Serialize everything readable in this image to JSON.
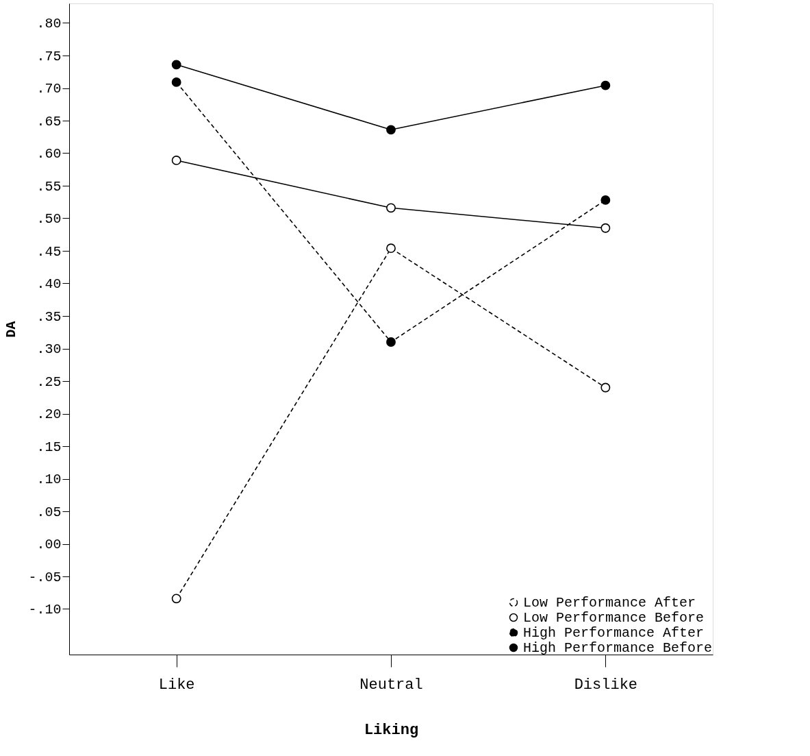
{
  "chart_data": {
    "type": "line",
    "xlabel": "Liking",
    "ylabel": "DA",
    "categories": [
      "Like",
      "Neutral",
      "Dislike"
    ],
    "series": [
      {
        "name": "Low Performance After",
        "color": "#000000",
        "marker": "open circle",
        "line_style": "dashed",
        "values": [
          -0.084,
          0.454,
          0.24
        ]
      },
      {
        "name": "Low Performance Before",
        "color": "#000000",
        "marker": "open circle",
        "line_style": "solid",
        "values": [
          0.589,
          0.516,
          0.485
        ]
      },
      {
        "name": "High Performance After",
        "color": "#000000",
        "marker": "circle",
        "line_style": "dashed",
        "values": [
          0.709,
          0.31,
          0.528
        ]
      },
      {
        "name": "High Performance Before",
        "color": "#000000",
        "marker": "circle",
        "line_style": "solid",
        "values": [
          0.736,
          0.636,
          0.704
        ]
      }
    ],
    "ylim": [
      -0.17,
      0.83
    ],
    "yticks": [
      {
        "value": 0.8,
        "label": ".80"
      },
      {
        "value": 0.75,
        "label": ".75"
      },
      {
        "value": 0.7,
        "label": ".70"
      },
      {
        "value": 0.65,
        "label": ".65"
      },
      {
        "value": 0.6,
        "label": ".60"
      },
      {
        "value": 0.55,
        "label": ".55"
      },
      {
        "value": 0.5,
        "label": ".50"
      },
      {
        "value": 0.45,
        "label": ".45"
      },
      {
        "value": 0.4,
        "label": ".40"
      },
      {
        "value": 0.35,
        "label": ".35"
      },
      {
        "value": 0.3,
        "label": ".30"
      },
      {
        "value": 0.25,
        "label": ".25"
      },
      {
        "value": 0.2,
        "label": ".20"
      },
      {
        "value": 0.15,
        "label": ".15"
      },
      {
        "value": 0.1,
        "label": ".10"
      },
      {
        "value": 0.05,
        "label": ".05"
      },
      {
        "value": 0,
        "label": ".00"
      },
      {
        "value": -0.05,
        "label": "-.05"
      },
      {
        "value": -0.1,
        "label": "-.10"
      }
    ],
    "marker": "circle",
    "grid": false,
    "legend": "bottom right"
  }
}
